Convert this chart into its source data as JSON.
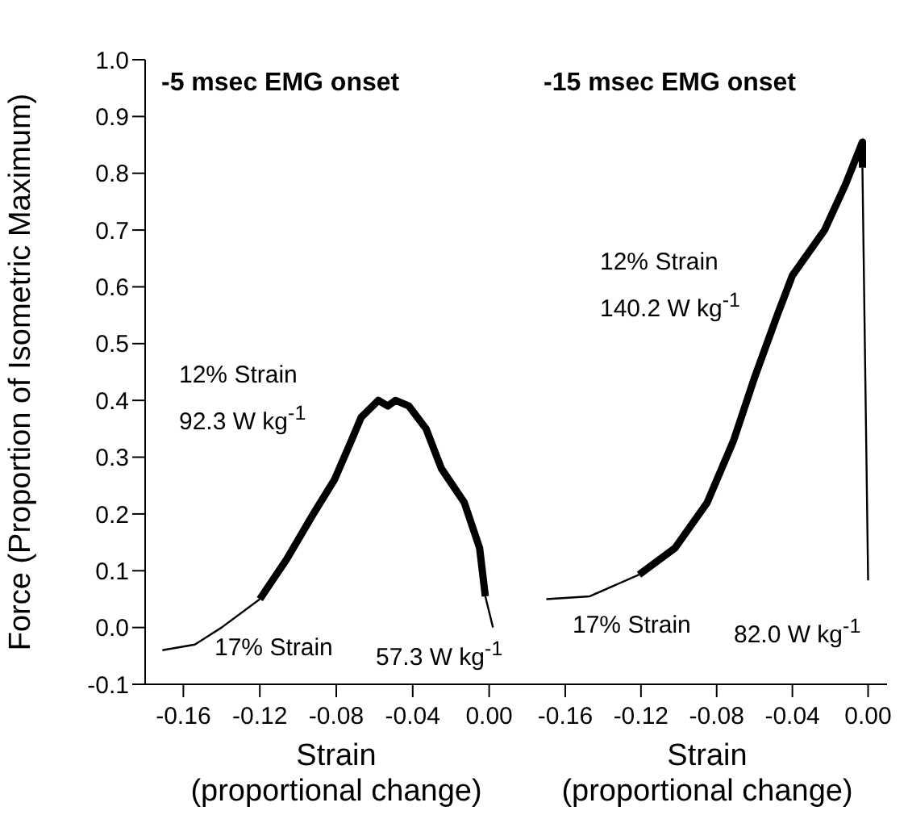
{
  "chart_data": [
    {
      "type": "line",
      "title": "-5 msec EMG onset",
      "xlabel": "Strain\n(proportional change)",
      "ylabel": "Force (Proportion of Isometric Maximum)",
      "xlim": [
        -0.18,
        0.02
      ],
      "xticks": [
        -0.16,
        -0.12,
        -0.08,
        -0.04,
        {
          "value": 0,
          "label": "0.00"
        }
      ],
      "ylim": [
        -0.1,
        1.0
      ],
      "yticks": [
        -0.1,
        {
          "value": 0,
          "label": "0.0"
        },
        0.1,
        0.2,
        0.3,
        0.4,
        0.5,
        0.6,
        0.7,
        0.8,
        0.9,
        {
          "value": 1,
          "label": "1.0"
        }
      ],
      "series": [
        {
          "color": "#000000",
          "x": [
            -0.171,
            -0.154,
            -0.14,
            -0.12
          ],
          "values": [
            -0.04,
            -0.03,
            0.0,
            0.05
          ]
        },
        {
          "color": "#000000",
          "x": [
            -0.12,
            -0.106,
            -0.092,
            -0.081,
            -0.072,
            -0.067,
            -0.058,
            -0.053,
            -0.049,
            -0.042,
            -0.033,
            -0.025,
            -0.013,
            -0.005,
            -0.002
          ],
          "values": [
            0.05,
            0.12,
            0.2,
            0.26,
            0.33,
            0.37,
            0.4,
            0.39,
            0.4,
            0.39,
            0.35,
            0.28,
            0.22,
            0.14,
            0.055
          ]
        },
        {
          "color": "#000000",
          "x": [
            -0.002,
            0.002
          ],
          "values": [
            0.055,
            0.0
          ]
        }
      ],
      "annotations": [
        "12% Strain",
        "92.3 W kg$^{-1}$",
        "17% Strain",
        "57.3 W kg$^{-1}$"
      ],
      "grid": false,
      "legend": false,
      "marker": "none",
      "line_style": "solid"
    },
    {
      "type": "line",
      "title": "-15 msec EMG onset",
      "xlabel": "Strain\n(proportional change)",
      "xlim": [
        -0.18,
        0.01
      ],
      "xticks": [
        -0.16,
        -0.12,
        -0.08,
        -0.04,
        {
          "value": 0,
          "label": "0.00"
        }
      ],
      "ylim": [
        -0.1,
        1.0
      ],
      "tick_labels": "x",
      "series": [
        {
          "color": "#000000",
          "x": [
            -0.17,
            -0.147,
            -0.121
          ],
          "values": [
            0.05,
            0.055,
            0.093
          ]
        },
        {
          "color": "#000000",
          "x": [
            -0.121,
            -0.102,
            -0.085,
            -0.071,
            -0.06,
            -0.048,
            -0.04,
            -0.023,
            -0.012,
            -0.003,
            -0.003
          ],
          "values": [
            0.093,
            0.14,
            0.22,
            0.33,
            0.44,
            0.55,
            0.62,
            0.7,
            0.78,
            0.855,
            0.81
          ]
        },
        {
          "color": "#000000",
          "x": [
            -0.003,
            0.0
          ],
          "values": [
            0.81,
            0.083
          ]
        }
      ],
      "annotations": [
        "12% Strain",
        "140.2 W kg$^{-1}$",
        "17% Strain",
        "82.0 W kg$^{-1}$"
      ],
      "grid": false,
      "legend": false,
      "marker": "none",
      "line_style": "solid"
    }
  ]
}
